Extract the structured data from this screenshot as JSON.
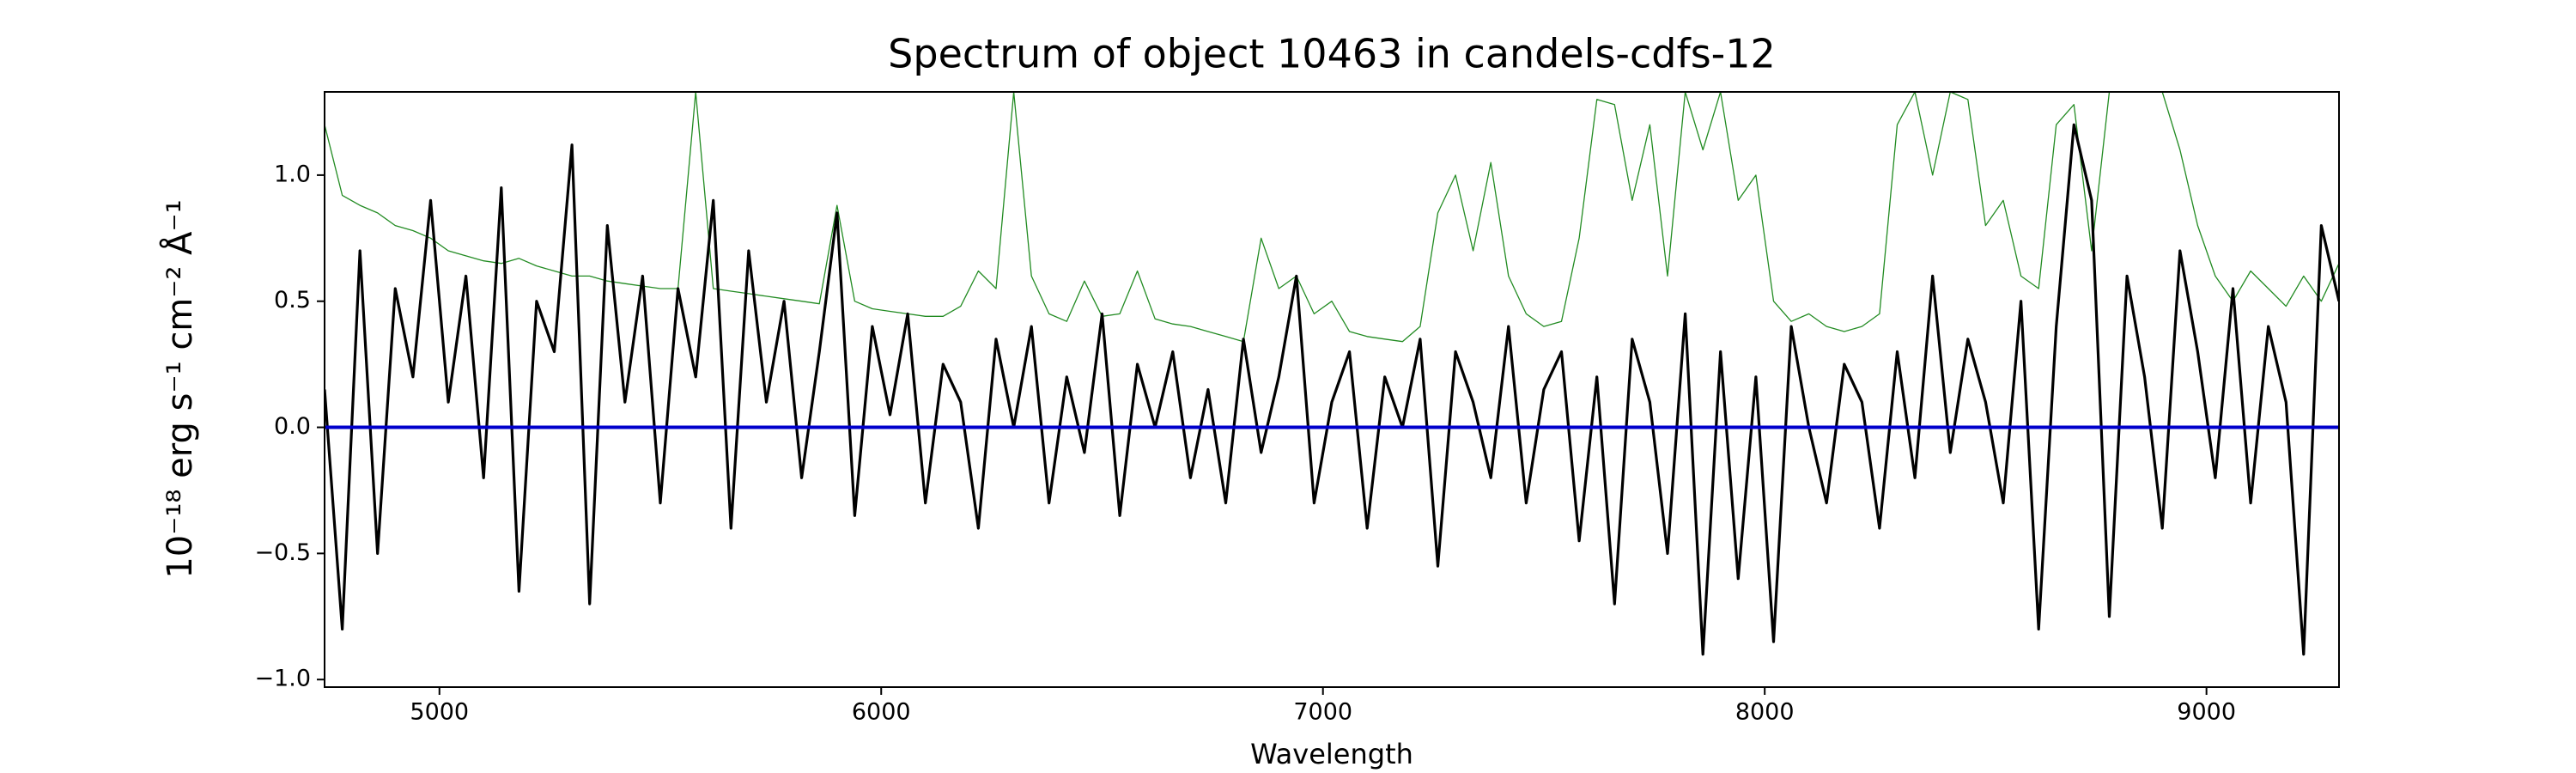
{
  "chart_data": {
    "type": "line",
    "title": "Spectrum of object 10463 in candels-cdfs-12",
    "x_label": "Wavelength",
    "y_label": "10⁻¹⁸ erg s⁻¹ cm⁻² Å⁻¹",
    "xlim": [
      4740,
      9300
    ],
    "ylim": [
      -1.03,
      1.33
    ],
    "xticks": [
      5000,
      6000,
      7000,
      8000,
      9000
    ],
    "yticks": [
      {
        "value": -1.0,
        "label": "−1.0"
      },
      {
        "value": -0.5,
        "label": "−0.5"
      },
      {
        "value": 0.0,
        "label": "0.0"
      },
      {
        "value": 0.5,
        "label": "0.5"
      },
      {
        "value": 1.0,
        "label": "1.0"
      }
    ],
    "x": [
      4740,
      4780,
      4820,
      4860,
      4900,
      4940,
      4980,
      5020,
      5060,
      5100,
      5140,
      5180,
      5220,
      5260,
      5300,
      5340,
      5380,
      5420,
      5460,
      5500,
      5540,
      5580,
      5620,
      5660,
      5700,
      5740,
      5780,
      5820,
      5860,
      5900,
      5940,
      5980,
      6020,
      6060,
      6100,
      6140,
      6180,
      6220,
      6260,
      6300,
      6340,
      6380,
      6420,
      6460,
      6500,
      6540,
      6580,
      6620,
      6660,
      6700,
      6740,
      6780,
      6820,
      6860,
      6900,
      6940,
      6980,
      7020,
      7060,
      7100,
      7140,
      7180,
      7220,
      7260,
      7300,
      7340,
      7380,
      7420,
      7460,
      7500,
      7540,
      7580,
      7620,
      7660,
      7700,
      7740,
      7780,
      7820,
      7860,
      7900,
      7940,
      7980,
      8020,
      8060,
      8100,
      8140,
      8180,
      8220,
      8260,
      8300,
      8340,
      8380,
      8420,
      8460,
      8500,
      8540,
      8580,
      8620,
      8660,
      8700,
      8740,
      8780,
      8820,
      8860,
      8900,
      8940,
      8980,
      9020,
      9060,
      9100,
      9140,
      9180,
      9220,
      9260,
      9300
    ],
    "series": [
      {
        "color": "#228b22",
        "values": [
          1.2,
          0.92,
          0.88,
          0.85,
          0.8,
          0.78,
          0.75,
          0.7,
          0.68,
          0.66,
          0.65,
          0.67,
          0.64,
          0.62,
          0.6,
          0.6,
          0.58,
          0.57,
          0.56,
          0.55,
          0.55,
          1.33,
          0.55,
          0.54,
          0.53,
          0.52,
          0.51,
          0.5,
          0.49,
          0.88,
          0.5,
          0.47,
          0.46,
          0.45,
          0.44,
          0.44,
          0.48,
          0.62,
          0.55,
          1.33,
          0.6,
          0.45,
          0.42,
          0.58,
          0.44,
          0.45,
          0.62,
          0.43,
          0.41,
          0.4,
          0.38,
          0.36,
          0.34,
          0.75,
          0.55,
          0.6,
          0.45,
          0.5,
          0.38,
          0.36,
          0.35,
          0.34,
          0.4,
          0.85,
          1.0,
          0.7,
          1.05,
          0.6,
          0.45,
          0.4,
          0.42,
          0.75,
          1.3,
          1.28,
          0.9,
          1.2,
          0.6,
          1.33,
          1.1,
          1.33,
          0.9,
          1.0,
          0.5,
          0.42,
          0.45,
          0.4,
          0.38,
          0.4,
          0.45,
          1.2,
          1.33,
          1.0,
          1.33,
          1.3,
          0.8,
          0.9,
          0.6,
          0.55,
          1.2,
          1.28,
          0.7,
          1.33,
          1.33,
          1.33,
          1.33,
          1.1,
          0.8,
          0.6,
          0.5,
          0.62,
          0.55,
          0.48,
          0.6,
          0.5,
          0.65
        ]
      },
      {
        "color": "#000000",
        "values": [
          0.15,
          -0.8,
          0.7,
          -0.5,
          0.55,
          0.2,
          0.9,
          0.1,
          0.6,
          -0.2,
          0.95,
          -0.65,
          0.5,
          0.3,
          1.12,
          -0.7,
          0.8,
          0.1,
          0.6,
          -0.3,
          0.55,
          0.2,
          0.9,
          -0.4,
          0.7,
          0.1,
          0.5,
          -0.2,
          0.3,
          0.85,
          -0.35,
          0.4,
          0.05,
          0.45,
          -0.3,
          0.25,
          0.1,
          -0.4,
          0.35,
          0.0,
          0.4,
          -0.3,
          0.2,
          -0.1,
          0.45,
          -0.35,
          0.25,
          0.0,
          0.3,
          -0.2,
          0.15,
          -0.3,
          0.35,
          -0.1,
          0.2,
          0.6,
          -0.3,
          0.1,
          0.3,
          -0.4,
          0.2,
          0.0,
          0.35,
          -0.55,
          0.3,
          0.1,
          -0.2,
          0.4,
          -0.3,
          0.15,
          0.3,
          -0.45,
          0.2,
          -0.7,
          0.35,
          0.1,
          -0.5,
          0.45,
          -0.9,
          0.3,
          -0.6,
          0.2,
          -0.85,
          0.4,
          0.0,
          -0.3,
          0.25,
          0.1,
          -0.4,
          0.3,
          -0.2,
          0.6,
          -0.1,
          0.35,
          0.1,
          -0.3,
          0.5,
          -0.8,
          0.4,
          1.2,
          0.9,
          -0.75,
          0.6,
          0.2,
          -0.4,
          0.7,
          0.3,
          -0.2,
          0.55,
          -0.3,
          0.4,
          0.1,
          -0.9,
          0.8,
          0.5
        ]
      },
      {
        "color": "#0000cc",
        "x": [
          4740,
          9300
        ],
        "values": [
          0,
          0
        ]
      }
    ]
  }
}
